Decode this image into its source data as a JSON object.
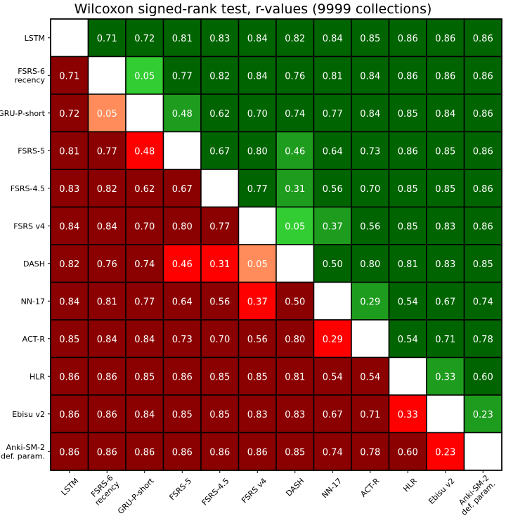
{
  "chart_data": {
    "type": "heatmap",
    "title": "Wilcoxon signed-rank test, r-values (9999 collections)",
    "labels": [
      "LSTM",
      "FSRS-6\nrecency",
      "GRU-P-short",
      "FSRS-5",
      "FSRS-4.5",
      "FSRS v4",
      "DASH",
      "NN-17",
      "ACT-R",
      "HLR",
      "Ebisu v2",
      "Anki-SM-2\ndef. param."
    ],
    "values": [
      [
        null,
        0.71,
        0.72,
        0.81,
        0.83,
        0.84,
        0.82,
        0.84,
        0.85,
        0.86,
        0.86,
        0.86
      ],
      [
        0.71,
        null,
        0.05,
        0.77,
        0.82,
        0.84,
        0.76,
        0.81,
        0.84,
        0.86,
        0.86,
        0.86
      ],
      [
        0.72,
        0.05,
        null,
        0.48,
        0.62,
        0.7,
        0.74,
        0.77,
        0.84,
        0.85,
        0.84,
        0.86
      ],
      [
        0.81,
        0.77,
        0.48,
        null,
        0.67,
        0.8,
        0.46,
        0.64,
        0.73,
        0.86,
        0.85,
        0.86
      ],
      [
        0.83,
        0.82,
        0.62,
        0.67,
        null,
        0.77,
        0.31,
        0.56,
        0.7,
        0.85,
        0.85,
        0.86
      ],
      [
        0.84,
        0.84,
        0.7,
        0.8,
        0.77,
        null,
        0.05,
        0.37,
        0.56,
        0.85,
        0.83,
        0.86
      ],
      [
        0.82,
        0.76,
        0.74,
        0.46,
        0.31,
        0.05,
        null,
        0.5,
        0.8,
        0.81,
        0.83,
        0.85
      ],
      [
        0.84,
        0.81,
        0.77,
        0.64,
        0.56,
        0.37,
        0.5,
        null,
        0.29,
        0.54,
        0.67,
        0.74
      ],
      [
        0.85,
        0.84,
        0.84,
        0.73,
        0.7,
        0.56,
        0.8,
        0.29,
        null,
        0.54,
        0.71,
        0.78
      ],
      [
        0.86,
        0.86,
        0.85,
        0.86,
        0.85,
        0.85,
        0.81,
        0.54,
        0.54,
        null,
        0.33,
        0.6
      ],
      [
        0.86,
        0.86,
        0.84,
        0.85,
        0.85,
        0.83,
        0.83,
        0.67,
        0.71,
        0.33,
        null,
        0.23
      ],
      [
        0.86,
        0.86,
        0.86,
        0.86,
        0.86,
        0.86,
        0.85,
        0.74,
        0.78,
        0.6,
        0.23,
        null
      ]
    ],
    "colors": {
      "upper_bright": "#32cd32",
      "upper_mid": "#1e9c1e",
      "upper_dark": "#006400",
      "lower_light": "#ff8c5a",
      "lower_bright": "#ff0000",
      "lower_dark": "#8b0000",
      "diagonal": "#ffffff",
      "grid": "#000000"
    }
  }
}
